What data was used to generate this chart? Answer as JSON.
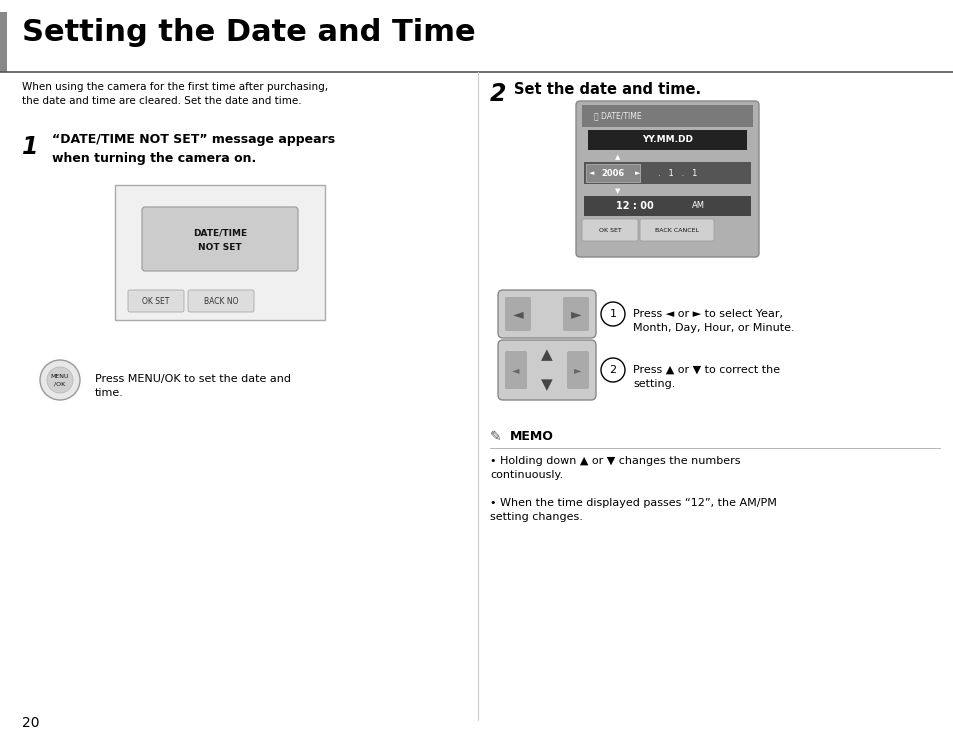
{
  "title": "Setting the Date and Time",
  "page_number": "20",
  "bg_color": "#ffffff",
  "title_color": "#000000",
  "title_fontsize": 22,
  "intro_text": "When using the camera for the first time after purchasing,\nthe date and time are cleared. Set the date and time.",
  "step1_bold_line1": "“DATE/TIME NOT SET” message appears",
  "step1_bold_line2": "when turning the camera on.",
  "step2_bold": "Set the date and time.",
  "menu_ok_text": "Press MENU/OK to set the date and\ntime.",
  "memo_title": "MEMO",
  "memo_bullets": [
    "Holding down ▲ or ▼ changes the numbers\ncontinuously.",
    "When the time displayed passes “12”, the AM/PM\nsetting changes."
  ],
  "press1_text": "Press ◄ or ► to select Year,\nMonth, Day, Hour, or Minute.",
  "press2_text": "Press ▲ or ▼ to correct the\nsetting."
}
